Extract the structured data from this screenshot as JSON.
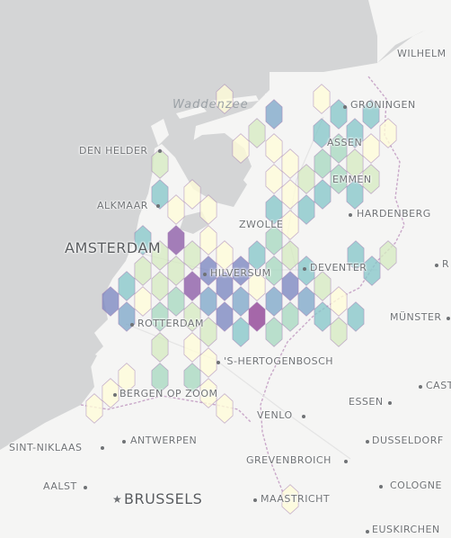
{
  "map": {
    "sea_label": "Waddenzee",
    "labels": [
      {
        "id": "wilhelmshaven",
        "text": "WILHELM"
      },
      {
        "id": "groningen",
        "text": "GRONINGEN"
      },
      {
        "id": "den-helder",
        "text": "DEN HELDER"
      },
      {
        "id": "assen",
        "text": "ASSEN"
      },
      {
        "id": "emmen",
        "text": "EMMEN"
      },
      {
        "id": "alkmaar",
        "text": "ALKMAAR"
      },
      {
        "id": "hardenberg",
        "text": "HARDENBERG"
      },
      {
        "id": "zwolle",
        "text": "ZWOLLE"
      },
      {
        "id": "amsterdam",
        "text": "AMSTERDAM"
      },
      {
        "id": "hilversum",
        "text": "HILVERSUM"
      },
      {
        "id": "deventer",
        "text": "DEVENTER"
      },
      {
        "id": "r-edge",
        "text": "R"
      },
      {
        "id": "rotterdam",
        "text": "ROTTERDAM"
      },
      {
        "id": "munster",
        "text": "MÜNSTER"
      },
      {
        "id": "s-hertogenbosch",
        "text": "'S-HERTOGENBOSCH"
      },
      {
        "id": "bergen-op-zoom",
        "text": "BERGEN OP ZOOM"
      },
      {
        "id": "castrop",
        "text": "CAST"
      },
      {
        "id": "essen",
        "text": "ESSEN"
      },
      {
        "id": "venlo",
        "text": "VENLO"
      },
      {
        "id": "sint-niklaas",
        "text": "SINT-NIKLAAS"
      },
      {
        "id": "antwerpen",
        "text": "ANTWERPEN"
      },
      {
        "id": "dusseldorf",
        "text": "DUSSELDORF"
      },
      {
        "id": "grevenbroich",
        "text": "GREVENBROICH"
      },
      {
        "id": "aalst",
        "text": "AALST"
      },
      {
        "id": "brussels",
        "text": "BRUSSELS"
      },
      {
        "id": "maastricht",
        "text": "MAASTRICHT"
      },
      {
        "id": "cologne",
        "text": "COLOGNE"
      },
      {
        "id": "euskirchen",
        "text": "EUSKIRCHEN"
      }
    ],
    "hexbin_palette": {
      "level_1": "#fffdd8",
      "level_2": "#d6ebc2",
      "level_3": "#a8d8c0",
      "level_4": "#86c7c9",
      "level_5": "#7fa8c9",
      "level_6": "#7b87c0",
      "level_7": "#8c5ba6",
      "level_8": "#8e3f93"
    },
    "colors": {
      "sea": "#d4d5d6",
      "land": "#f5f5f4",
      "border": "#c9a8c9"
    }
  }
}
